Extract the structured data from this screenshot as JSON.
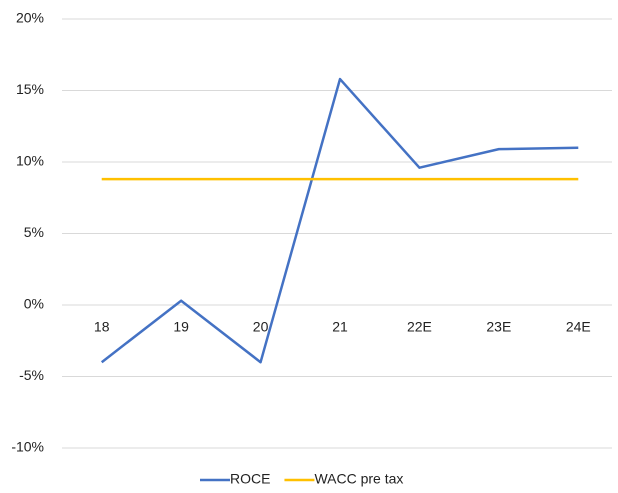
{
  "chart_data": {
    "type": "line",
    "categories": [
      "18",
      "19",
      "20",
      "21",
      "22E",
      "23E",
      "24E"
    ],
    "series": [
      {
        "name": "ROCE",
        "color": "#4472c4",
        "values": [
          -4.0,
          0.3,
          -4.0,
          15.8,
          9.6,
          10.9,
          11.0
        ]
      },
      {
        "name": "WACC pre tax",
        "color": "#ffc000",
        "values": [
          8.8,
          8.8,
          8.8,
          8.8,
          8.8,
          8.8,
          8.8
        ]
      }
    ],
    "ylim": [
      -10,
      20
    ],
    "yticks": [
      {
        "value": -10,
        "label": "-10%"
      },
      {
        "value": -5,
        "label": "-5%"
      },
      {
        "value": 0,
        "label": "0%"
      },
      {
        "value": 5,
        "label": "5%"
      },
      {
        "value": 10,
        "label": "10%"
      },
      {
        "value": 15,
        "label": "15%"
      },
      {
        "value": 20,
        "label": "20%"
      }
    ],
    "grid": true,
    "legend": "bottom"
  }
}
